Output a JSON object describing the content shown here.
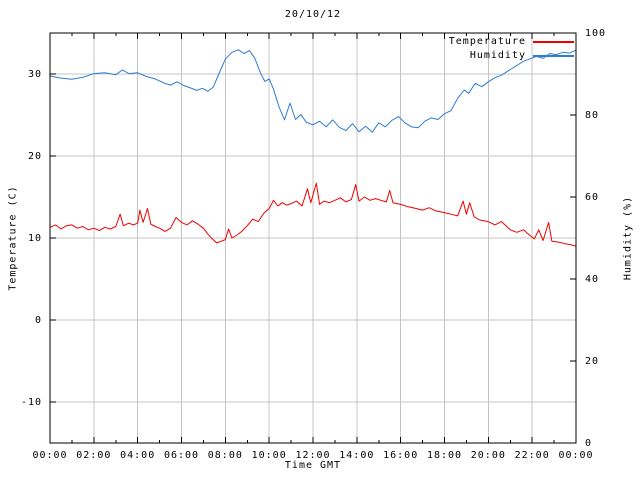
{
  "title": "20/10/12",
  "axes": {
    "x": {
      "label": "Time GMT",
      "tick_hours": [
        0,
        2,
        4,
        6,
        8,
        10,
        12,
        14,
        16,
        18,
        20,
        22,
        24
      ],
      "tick_labels": [
        "00:00",
        "02:00",
        "04:00",
        "06:00",
        "08:00",
        "10:00",
        "12:00",
        "14:00",
        "16:00",
        "18:00",
        "20:00",
        "22:00",
        "00:00"
      ],
      "minor_tick_hours": [
        1,
        3,
        5,
        7,
        9,
        11,
        13,
        15,
        17,
        19,
        21,
        23
      ]
    },
    "y_left": {
      "label": "Temperature (C)",
      "tick_values": [
        -10,
        0,
        10,
        20,
        30
      ],
      "range": [
        -15,
        35
      ]
    },
    "y_right": {
      "label": "Humidity (%)",
      "tick_values": [
        0,
        20,
        40,
        60,
        80,
        100
      ],
      "range": [
        0,
        100
      ]
    }
  },
  "legend": {
    "entries": [
      {
        "label": "Temperature",
        "color": "#ee0000"
      },
      {
        "label": "Humidity",
        "color": "#2d7dd2"
      }
    ]
  },
  "colors": {
    "background": "#ffffff",
    "border": "#000000",
    "grid": "#c4c4c4",
    "temperature": "#ee0000",
    "humidity": "#2d7dd2"
  },
  "chart_data": {
    "type": "line",
    "title": "20/10/12",
    "xlabel": "Time GMT",
    "x_unit": "hours_gmt",
    "xlim": [
      0,
      24
    ],
    "grid": true,
    "legend_position": "top-right-inside",
    "series": [
      {
        "name": "Temperature",
        "axis": "left",
        "ylabel": "Temperature (C)",
        "ylim": [
          -15,
          35
        ],
        "color": "#ee0000",
        "points": [
          [
            0,
            11.3
          ],
          [
            0.25,
            11.6
          ],
          [
            0.5,
            11.1
          ],
          [
            0.75,
            11.5
          ],
          [
            1,
            11.6
          ],
          [
            1.25,
            11.2
          ],
          [
            1.5,
            11.4
          ],
          [
            1.75,
            11.0
          ],
          [
            2,
            11.2
          ],
          [
            2.25,
            10.9
          ],
          [
            2.5,
            11.3
          ],
          [
            2.75,
            11.1
          ],
          [
            3,
            11.4
          ],
          [
            3.2,
            12.9
          ],
          [
            3.35,
            11.5
          ],
          [
            3.6,
            11.8
          ],
          [
            3.8,
            11.6
          ],
          [
            4,
            11.8
          ],
          [
            4.1,
            13.4
          ],
          [
            4.25,
            11.9
          ],
          [
            4.45,
            13.6
          ],
          [
            4.6,
            11.7
          ],
          [
            4.8,
            11.4
          ],
          [
            5,
            11.2
          ],
          [
            5.25,
            10.8
          ],
          [
            5.5,
            11.2
          ],
          [
            5.75,
            12.5
          ],
          [
            6,
            11.9
          ],
          [
            6.25,
            11.6
          ],
          [
            6.5,
            12.1
          ],
          [
            6.75,
            11.7
          ],
          [
            7,
            11.2
          ],
          [
            7.2,
            10.5
          ],
          [
            7.4,
            9.9
          ],
          [
            7.6,
            9.4
          ],
          [
            7.8,
            9.6
          ],
          [
            8,
            9.8
          ],
          [
            8.15,
            11.1
          ],
          [
            8.3,
            10.0
          ],
          [
            8.5,
            10.3
          ],
          [
            8.75,
            10.8
          ],
          [
            9,
            11.5
          ],
          [
            9.25,
            12.3
          ],
          [
            9.5,
            12.0
          ],
          [
            9.75,
            13.0
          ],
          [
            10,
            13.6
          ],
          [
            10.2,
            14.6
          ],
          [
            10.4,
            13.9
          ],
          [
            10.6,
            14.3
          ],
          [
            10.8,
            14.0
          ],
          [
            11,
            14.2
          ],
          [
            11.25,
            14.5
          ],
          [
            11.5,
            13.9
          ],
          [
            11.75,
            16.0
          ],
          [
            11.9,
            14.3
          ],
          [
            12.15,
            16.7
          ],
          [
            12.3,
            14.1
          ],
          [
            12.5,
            14.5
          ],
          [
            12.75,
            14.3
          ],
          [
            13,
            14.6
          ],
          [
            13.25,
            14.9
          ],
          [
            13.5,
            14.4
          ],
          [
            13.75,
            14.7
          ],
          [
            13.95,
            16.5
          ],
          [
            14.1,
            14.5
          ],
          [
            14.35,
            15.0
          ],
          [
            14.6,
            14.6
          ],
          [
            14.85,
            14.8
          ],
          [
            15.1,
            14.6
          ],
          [
            15.35,
            14.4
          ],
          [
            15.5,
            15.8
          ],
          [
            15.65,
            14.3
          ],
          [
            16,
            14.1
          ],
          [
            16.35,
            13.8
          ],
          [
            16.7,
            13.6
          ],
          [
            17,
            13.4
          ],
          [
            17.3,
            13.7
          ],
          [
            17.6,
            13.3
          ],
          [
            18,
            13.1
          ],
          [
            18.3,
            12.9
          ],
          [
            18.6,
            12.7
          ],
          [
            18.85,
            14.5
          ],
          [
            19,
            12.9
          ],
          [
            19.15,
            14.3
          ],
          [
            19.35,
            12.6
          ],
          [
            19.6,
            12.2
          ],
          [
            20,
            12.0
          ],
          [
            20.3,
            11.6
          ],
          [
            20.6,
            12.0
          ],
          [
            21,
            11.0
          ],
          [
            21.3,
            10.7
          ],
          [
            21.6,
            11.0
          ],
          [
            21.9,
            10.3
          ],
          [
            22.1,
            9.9
          ],
          [
            22.3,
            11.0
          ],
          [
            22.5,
            9.7
          ],
          [
            22.75,
            11.9
          ],
          [
            22.9,
            9.6
          ],
          [
            23.2,
            9.5
          ],
          [
            23.5,
            9.3
          ],
          [
            23.75,
            9.2
          ],
          [
            24,
            9.0
          ]
        ]
      },
      {
        "name": "Humidity",
        "axis": "right",
        "ylabel": "Humidity (%)",
        "ylim": [
          0,
          100
        ],
        "color": "#2d7dd2",
        "points": [
          [
            0,
            89.5
          ],
          [
            0.5,
            89.0
          ],
          [
            1,
            88.7
          ],
          [
            1.5,
            89.2
          ],
          [
            2,
            90.1
          ],
          [
            2.5,
            90.3
          ],
          [
            3,
            89.8
          ],
          [
            3.3,
            91.0
          ],
          [
            3.6,
            90.1
          ],
          [
            4,
            90.3
          ],
          [
            4.4,
            89.4
          ],
          [
            4.8,
            88.8
          ],
          [
            5.2,
            87.8
          ],
          [
            5.5,
            87.3
          ],
          [
            5.8,
            88.1
          ],
          [
            6.1,
            87.2
          ],
          [
            6.4,
            86.6
          ],
          [
            6.7,
            86.0
          ],
          [
            6.95,
            86.5
          ],
          [
            7.2,
            85.8
          ],
          [
            7.45,
            86.8
          ],
          [
            7.7,
            90.0
          ],
          [
            8,
            93.6
          ],
          [
            8.3,
            95.3
          ],
          [
            8.6,
            95.9
          ],
          [
            8.85,
            95.0
          ],
          [
            9.1,
            95.7
          ],
          [
            9.35,
            93.8
          ],
          [
            9.6,
            90.3
          ],
          [
            9.8,
            88.2
          ],
          [
            10,
            88.8
          ],
          [
            10.2,
            86.3
          ],
          [
            10.45,
            82.0
          ],
          [
            10.7,
            78.8
          ],
          [
            10.95,
            82.9
          ],
          [
            11.2,
            78.9
          ],
          [
            11.45,
            80.1
          ],
          [
            11.7,
            78.2
          ],
          [
            12,
            77.6
          ],
          [
            12.3,
            78.5
          ],
          [
            12.6,
            77.1
          ],
          [
            12.9,
            78.8
          ],
          [
            13.2,
            77.0
          ],
          [
            13.5,
            76.2
          ],
          [
            13.8,
            77.9
          ],
          [
            14.1,
            75.9
          ],
          [
            14.4,
            77.3
          ],
          [
            14.7,
            75.8
          ],
          [
            15,
            78.1
          ],
          [
            15.3,
            77.1
          ],
          [
            15.6,
            78.7
          ],
          [
            15.9,
            79.6
          ],
          [
            16.2,
            78.1
          ],
          [
            16.5,
            77.1
          ],
          [
            16.8,
            76.9
          ],
          [
            17.1,
            78.5
          ],
          [
            17.4,
            79.3
          ],
          [
            17.7,
            78.9
          ],
          [
            18,
            80.3
          ],
          [
            18.3,
            81.1
          ],
          [
            18.6,
            84.1
          ],
          [
            18.9,
            86.1
          ],
          [
            19.1,
            85.3
          ],
          [
            19.4,
            87.7
          ],
          [
            19.7,
            86.9
          ],
          [
            20,
            88.1
          ],
          [
            20.3,
            89.1
          ],
          [
            20.6,
            89.7
          ],
          [
            21,
            91.1
          ],
          [
            21.3,
            92.1
          ],
          [
            21.6,
            93.1
          ],
          [
            21.9,
            93.7
          ],
          [
            22.2,
            94.3
          ],
          [
            22.5,
            93.8
          ],
          [
            22.8,
            95.0
          ],
          [
            23.1,
            94.7
          ],
          [
            23.4,
            95.3
          ],
          [
            23.7,
            95.1
          ],
          [
            24,
            95.8
          ]
        ]
      }
    ]
  }
}
